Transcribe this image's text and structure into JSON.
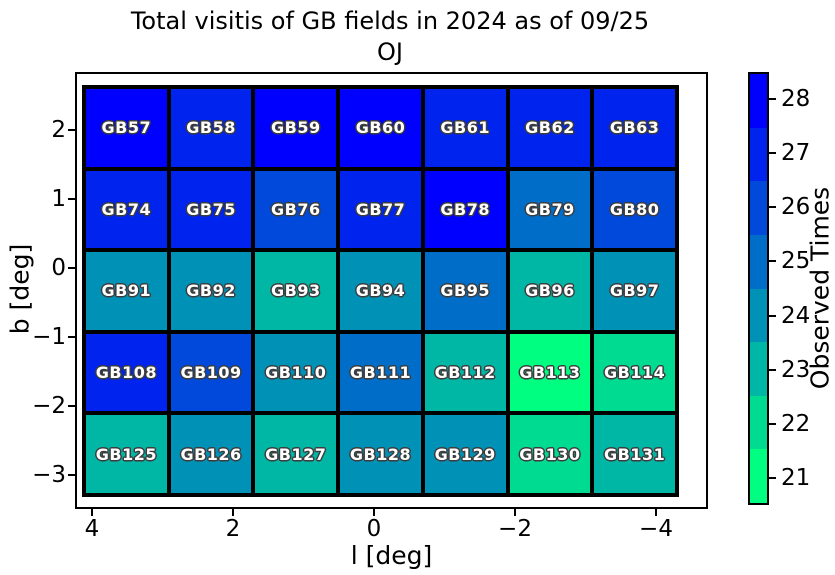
{
  "chart_data": {
    "type": "heatmap",
    "title": "Total visitis of GB fields in 2024 as of 09/25 OJ",
    "title_line1": "Total visitis of GB fields in 2024 as of 09/25",
    "title_line2": "OJ",
    "xlabel": "l [deg]",
    "ylabel": "b [deg]",
    "x_ticks": [
      "4",
      "2",
      "0",
      "−2",
      "−4"
    ],
    "y_ticks": [
      "2",
      "1",
      "0",
      "−1",
      "−2",
      "−3"
    ],
    "x_axis_reversed": true,
    "grid_on": false,
    "colorbar": {
      "label": "Observed Times",
      "ticks_top_to_bottom": [
        "28",
        "27",
        "26",
        "25",
        "24",
        "23",
        "22",
        "21"
      ],
      "range": [
        20.5,
        28.5
      ],
      "discrete_levels": 8,
      "colormap": "winter_r",
      "levels": [
        {
          "value": 28,
          "color": "#0000FF"
        },
        {
          "value": 27,
          "color": "#0024ED"
        },
        {
          "value": 26,
          "color": "#0049DB"
        },
        {
          "value": 25,
          "color": "#006DC9"
        },
        {
          "value": 24,
          "color": "#0092B6"
        },
        {
          "value": 23,
          "color": "#00B6A4"
        },
        {
          "value": 22,
          "color": "#00DB92"
        },
        {
          "value": 21,
          "color": "#00FF80"
        }
      ]
    },
    "rows": [
      {
        "labels": [
          "GB57",
          "GB58",
          "GB59",
          "GB60",
          "GB61",
          "GB62",
          "GB63"
        ],
        "values": [
          28,
          27,
          28,
          28,
          27,
          27,
          27
        ]
      },
      {
        "labels": [
          "GB74",
          "GB75",
          "GB76",
          "GB77",
          "GB78",
          "GB79",
          "GB80"
        ],
        "values": [
          27,
          27,
          26,
          27,
          28,
          25,
          26
        ]
      },
      {
        "labels": [
          "GB91",
          "GB92",
          "GB93",
          "GB94",
          "GB95",
          "GB96",
          "GB97"
        ],
        "values": [
          24,
          24,
          23,
          24,
          25,
          23,
          24
        ]
      },
      {
        "labels": [
          "GB108",
          "GB109",
          "GB110",
          "GB111",
          "GB112",
          "GB113",
          "GB114"
        ],
        "values": [
          27,
          26,
          24,
          25,
          23,
          21,
          22
        ]
      },
      {
        "labels": [
          "GB125",
          "GB126",
          "GB127",
          "GB128",
          "GB129",
          "GB130",
          "GB131"
        ],
        "values": [
          23,
          24,
          23,
          24,
          24,
          22,
          23
        ]
      }
    ]
  }
}
